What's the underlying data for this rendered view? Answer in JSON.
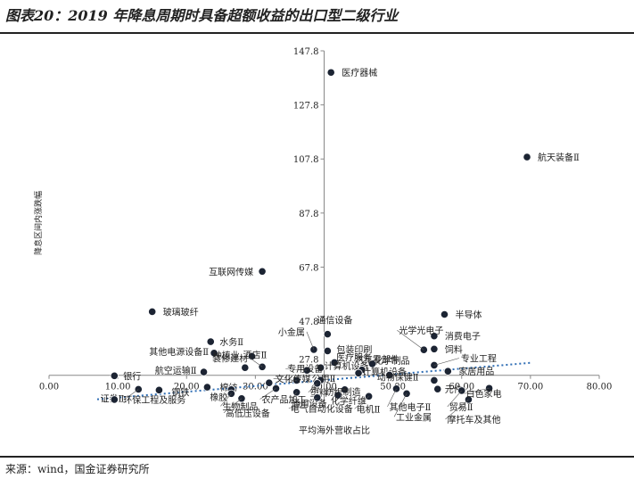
{
  "title": "图表20：2019 年降息周期时具备超额收益的出口型二级行业",
  "source": "来源：wind，国金证券研究所",
  "chart_data": {
    "type": "scatter",
    "xlabel": "平均海外营收占比",
    "ylabel": "降息区间内涨跌幅",
    "xlim": [
      0,
      80
    ],
    "ylim": [
      17.8,
      147.8
    ],
    "x_ticks": [
      "0.00",
      "10.00",
      "20.00",
      "30.00",
      "40.00",
      "50.00",
      "60.00",
      "70.00",
      "80.00"
    ],
    "y_ticks": [
      "47.8",
      "67.8",
      "87.8",
      "107.8",
      "127.8",
      "147.8"
    ],
    "y_tick_values": [
      47.8,
      67.8,
      87.8,
      107.8,
      127.8,
      147.8
    ],
    "axis_cross_y": 27.8,
    "axis_cross_label": "27.8",
    "trendline": {
      "style": "dotted",
      "color": "#2e6db4",
      "x": [
        7,
        70
      ],
      "y": [
        18.9,
        32.4
      ]
    },
    "points": [
      {
        "label": "医疗器械",
        "x": 41,
        "y": 139.8
      },
      {
        "label": "航天装备Ⅱ",
        "x": 69.5,
        "y": 108.5
      },
      {
        "label": "互联网传媒",
        "x": 31,
        "y": 66.2
      },
      {
        "label": "玻璃玻纤",
        "x": 15,
        "y": 51.3
      },
      {
        "label": "半导体",
        "x": 57.5,
        "y": 50.3
      },
      {
        "label": "通信设备",
        "x": 40.5,
        "y": 43.0
      },
      {
        "label": "消费电子",
        "x": 56,
        "y": 42.3
      },
      {
        "label": "光学光电子",
        "x": 54.5,
        "y": 37.2
      },
      {
        "label": "水务Ⅱ",
        "x": 23.5,
        "y": 40.2
      },
      {
        "label": "小金属",
        "x": 38.5,
        "y": 37.3
      },
      {
        "label": "饲料",
        "x": 56,
        "y": 37.5
      },
      {
        "label": "包装印刷",
        "x": 40.5,
        "y": 36.8
      },
      {
        "label": "其他电源设备Ⅱ",
        "x": 24,
        "y": 36.0
      },
      {
        "label": "酒店Ⅱ",
        "x": 29.5,
        "y": 34.8
      },
      {
        "label": "医疗服务",
        "x": 41.5,
        "y": 32.5
      },
      {
        "label": "化学制品",
        "x": 47,
        "y": 32.0
      },
      {
        "label": "专业工程",
        "x": 56,
        "y": 31.5
      },
      {
        "label": "种植业",
        "x": 28.5,
        "y": 30.6
      },
      {
        "label": "装修建材",
        "x": 31,
        "y": 30.9
      },
      {
        "label": "计算机设备",
        "x": 39.5,
        "y": 30.6
      },
      {
        "label": "航空运输Ⅱ",
        "x": 22.5,
        "y": 29.0
      },
      {
        "label": "汽车零部件",
        "x": 45.5,
        "y": 29.8
      },
      {
        "label": "家居用品",
        "x": 58,
        "y": 29.3
      },
      {
        "label": "专用设备",
        "x": 37.5,
        "y": 29.6
      },
      {
        "label": "计算机设备",
        "x": 45,
        "y": 28.6
      },
      {
        "label": "动物保健Ⅱ",
        "x": 49.5,
        "y": 27.9
      },
      {
        "label": "银行",
        "x": 9.5,
        "y": 27.6
      },
      {
        "label": "公用Ⅱ",
        "x": 39.5,
        "y": 26.0
      },
      {
        "label": "塑料",
        "x": 39,
        "y": 24.8
      },
      {
        "label": "文化传媒",
        "x": 36,
        "y": 25.9
      },
      {
        "label": "影视院线",
        "x": 32,
        "y": 25.0
      },
      {
        "label": "证券Ⅱ",
        "x": 13,
        "y": 22.6
      },
      {
        "label": "钢铁",
        "x": 16,
        "y": 22.3
      },
      {
        "label": "环保工程及服务",
        "x": 9.5,
        "y": 18.8
      },
      {
        "label": "棉纺",
        "x": 23,
        "y": 23.4
      },
      {
        "label": "橡胶",
        "x": 26.5,
        "y": 22.5
      },
      {
        "label": "生物制品",
        "x": 26.5,
        "y": 21.0
      },
      {
        "label": "高低压设备",
        "x": 28,
        "y": 19.2
      },
      {
        "label": "农产品加工",
        "x": 33,
        "y": 22.9
      },
      {
        "label": "通用设备",
        "x": 36,
        "y": 21.5
      },
      {
        "label": "电气自动化设备",
        "x": 39,
        "y": 19.5
      },
      {
        "label": "化学纤维",
        "x": 42,
        "y": 20.4
      },
      {
        "label": "纺织制造",
        "x": 43,
        "y": 22.5
      },
      {
        "label": "电机Ⅱ",
        "x": 46.5,
        "y": 20.0
      },
      {
        "label": "其他电子Ⅱ",
        "x": 50.5,
        "y": 22.8
      },
      {
        "label": "工业金属",
        "x": 52,
        "y": 21.0
      },
      {
        "label": "元件",
        "x": 56.5,
        "y": 22.7
      },
      {
        "label": "贸易Ⅱ",
        "x": 60,
        "y": 22.1
      },
      {
        "label": "摩托车及其他",
        "x": 61,
        "y": 18.8
      },
      {
        "label": "白色家电",
        "x": 64,
        "y": 23.0
      },
      {
        "label": "物流Ⅱ",
        "x": 56,
        "y": 25.9
      }
    ]
  }
}
